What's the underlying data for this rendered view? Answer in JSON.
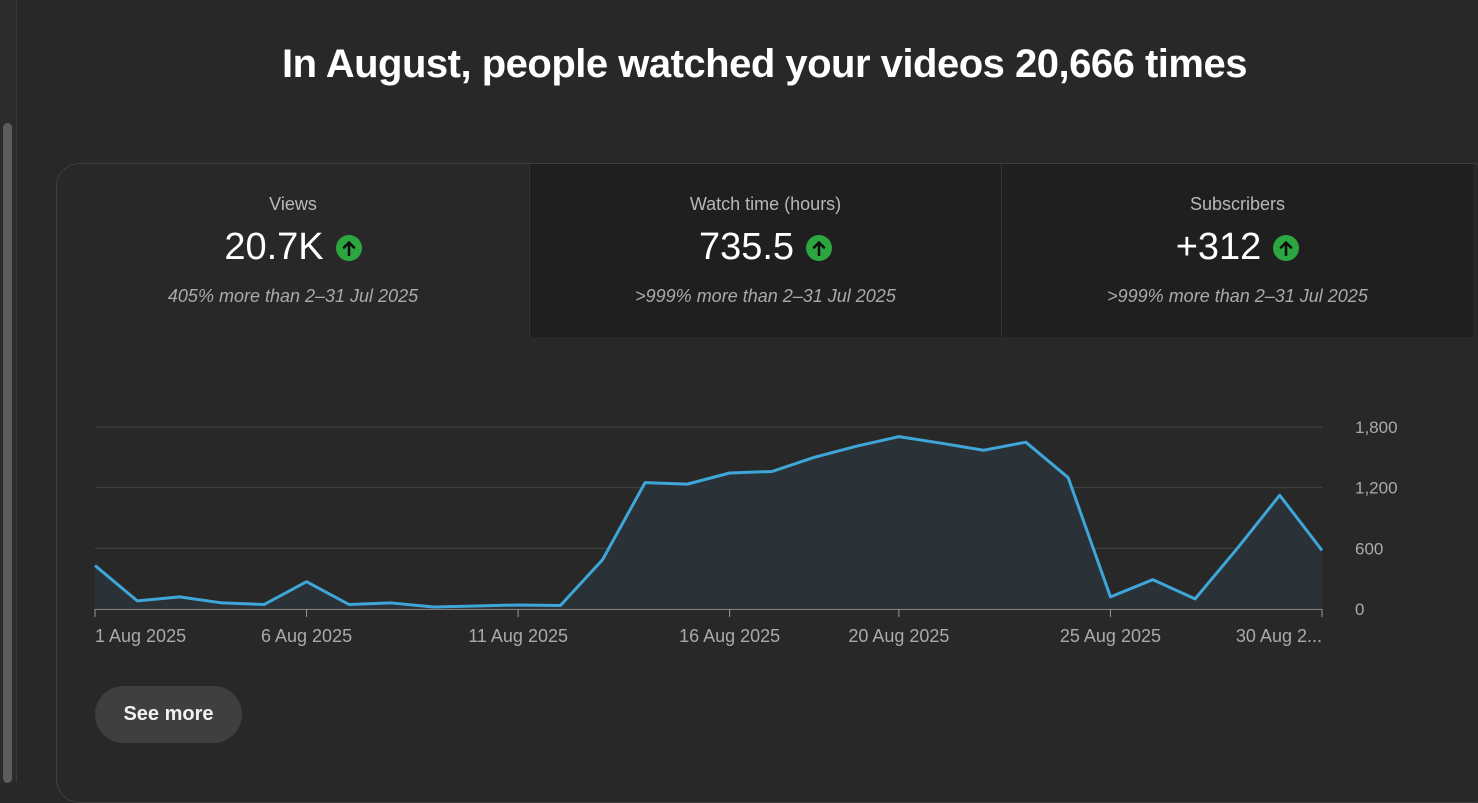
{
  "headline": "In August, people watched your videos 20,666 times",
  "tabs": [
    {
      "label": "Views",
      "value": "20.7K",
      "compare": "405% more than 2–31 Jul 2025",
      "trend": "up",
      "selected": true
    },
    {
      "label": "Watch time (hours)",
      "value": "735.5",
      "compare": ">999% more than 2–31 Jul 2025",
      "trend": "up",
      "selected": false
    },
    {
      "label": "Subscribers",
      "value": "+312",
      "compare": ">999% more than 2–31 Jul 2025",
      "trend": "up",
      "selected": false
    }
  ],
  "colors": {
    "trend_up": "#2ba640",
    "line": "#3ea6d8",
    "area": "#2b3338"
  },
  "see_more_label": "See more",
  "chart_data": {
    "type": "area",
    "metric": "Views",
    "x": [
      "1 Aug 2025",
      "2 Aug 2025",
      "3 Aug 2025",
      "4 Aug 2025",
      "5 Aug 2025",
      "6 Aug 2025",
      "7 Aug 2025",
      "8 Aug 2025",
      "9 Aug 2025",
      "10 Aug 2025",
      "11 Aug 2025",
      "12 Aug 2025",
      "13 Aug 2025",
      "14 Aug 2025",
      "15 Aug 2025",
      "16 Aug 2025",
      "17 Aug 2025",
      "18 Aug 2025",
      "19 Aug 2025",
      "20 Aug 2025",
      "21 Aug 2025",
      "22 Aug 2025",
      "23 Aug 2025",
      "24 Aug 2025",
      "25 Aug 2025",
      "26 Aug 2025",
      "27 Aug 2025",
      "28 Aug 2025",
      "29 Aug 2025",
      "30 Aug 2025"
    ],
    "values": [
      430,
      80,
      120,
      60,
      45,
      270,
      45,
      60,
      20,
      30,
      40,
      35,
      490,
      1250,
      1235,
      1345,
      1360,
      1500,
      1610,
      1705,
      1640,
      1570,
      1650,
      1300,
      120,
      290,
      100,
      600,
      1125,
      580
    ],
    "x_tick_labels": [
      "1 Aug 2025",
      "6 Aug 2025",
      "11 Aug 2025",
      "16 Aug 2025",
      "20 Aug 2025",
      "25 Aug 2025",
      "30 Aug 2..."
    ],
    "x_tick_indices": [
      0,
      5,
      10,
      15,
      19,
      24,
      29
    ],
    "y_ticks": [
      "0",
      "600",
      "1,200",
      "1,800"
    ],
    "y_tick_values": [
      0,
      600,
      1200,
      1800
    ],
    "ylim": [
      0,
      1800
    ],
    "y_axis_side": "right",
    "grid": true
  }
}
